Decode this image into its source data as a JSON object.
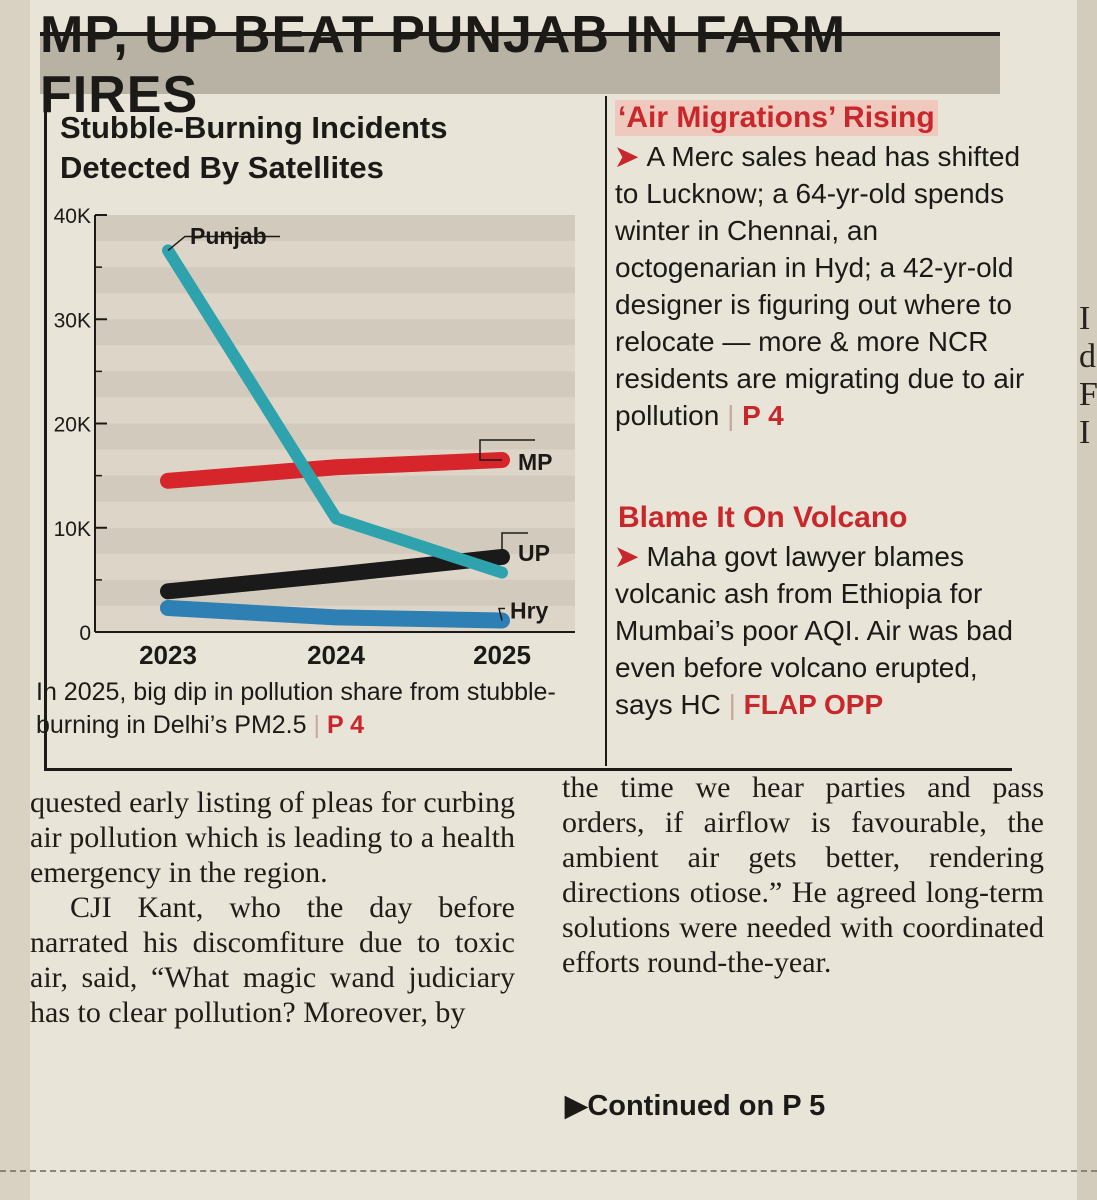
{
  "headline": "MP, UP BEAT PUNJAB IN FARM FIRES",
  "chart_data": {
    "type": "line",
    "title": "Stubble-Burning Incidents Detected By Satellites",
    "x": [
      "2023",
      "2024",
      "2025"
    ],
    "ylim": [
      0,
      40000
    ],
    "yticks": [
      "0",
      "10K",
      "20K",
      "30K",
      "40K"
    ],
    "series": [
      {
        "name": "Punjab",
        "values": [
          36600,
          10900,
          5700
        ],
        "color": "#2fa3ad"
      },
      {
        "name": "MP",
        "values": [
          14500,
          15800,
          16500
        ],
        "color": "#d7262b"
      },
      {
        "name": "UP",
        "values": [
          3900,
          5500,
          7200
        ],
        "color": "#1a1a1a"
      },
      {
        "name": "Hry",
        "values": [
          2300,
          1400,
          1100
        ],
        "color": "#2e7fb4"
      }
    ],
    "note": "In 2025, big dip in pollution share from stubble-burning in Delhi’s PM2.5",
    "note_ref": "P 4"
  },
  "sidebar": [
    {
      "heading": "‘Air Migrations’ Rising",
      "body": "A Merc sales head has shifted to Lucknow; a 64-yr-old spends winter in Chennai, an octogenarian in Hyd; a 42-yr-old designer is figuring out where to relocate — more & more NCR residents are migrating due to air pollution",
      "ref": "P 4"
    },
    {
      "heading": "Blame It On Volcano",
      "body": "Maha govt lawyer blames volcanic ash from Ethiopia for Mumbai’s poor AQI. Air was bad even before volcano erupted, says HC",
      "ref": "FLAP OPP"
    }
  ],
  "article": {
    "col1_p1": "quested early listing of pleas for curbing air pollution which is leading to a health emergency in the region.",
    "col1_p2": "CJI Kant, who the day before narrated his discomfiture due to toxic air, said, “What magic wand judiciary has to clear pollution? Moreover, by",
    "col2_p1": "the time we hear parties and pass orders, if airflow is favourable, the ambient air gets better, rendering directions otiose.” He agreed long-term solutions were needed with coordinated efforts round-the-year.",
    "continued": "Continued on P 5"
  },
  "edge_glyphs": [
    "I",
    "d",
    "F",
    "I"
  ]
}
